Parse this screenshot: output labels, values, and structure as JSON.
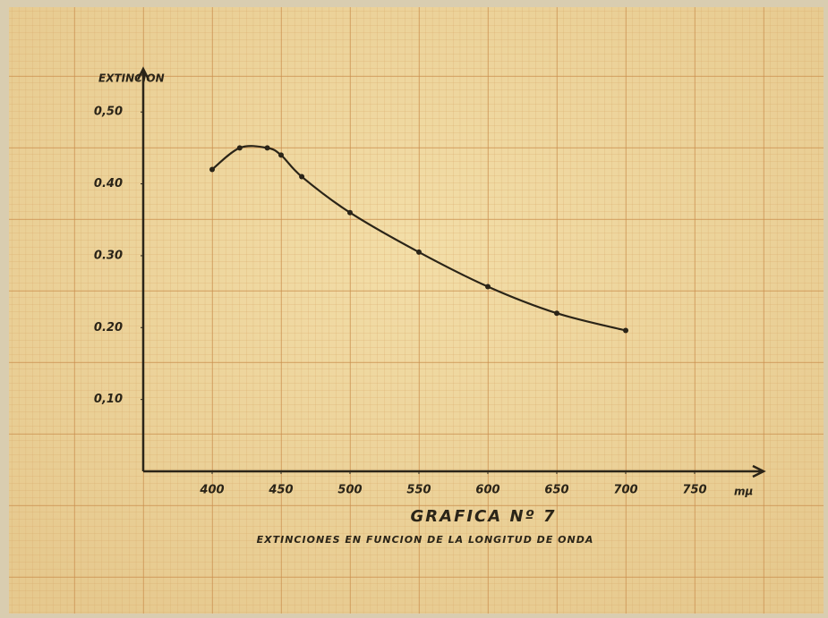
{
  "chart_data": {
    "type": "line",
    "title": "GRAFICA Nº 7",
    "subtitle": "EXTINCIONES EN FUNCION DE LA LONGITUD DE ONDA",
    "y_label": "EXTINCION",
    "x_label": "mμ",
    "x": [
      400,
      420,
      440,
      450,
      465,
      500,
      550,
      600,
      650,
      700
    ],
    "series": [
      {
        "color": "#2a2418",
        "values": [
          0.42,
          0.45,
          0.45,
          0.44,
          0.41,
          0.36,
          0.305,
          0.257,
          0.22,
          0.196
        ]
      }
    ],
    "xlim": [
      350,
      800
    ],
    "ylim": [
      0,
      0.56
    ],
    "xticks": [
      400,
      450,
      500,
      550,
      600,
      650,
      700,
      750
    ],
    "yticks": [
      {
        "value": 0.5,
        "label": "0,50"
      },
      {
        "value": 0.4,
        "label": "0.40"
      },
      {
        "value": 0.3,
        "label": "0.30"
      },
      {
        "value": 0.2,
        "label": "0.20"
      },
      {
        "value": 0.1,
        "label": "0,10"
      }
    ]
  }
}
